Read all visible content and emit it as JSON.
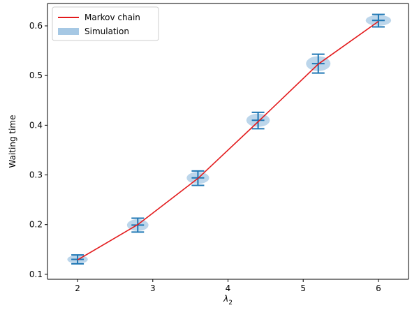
{
  "chart_data": {
    "type": "line",
    "title": "",
    "xlabel_base": "λ",
    "xlabel_sub": "2",
    "ylabel": "Waiting time",
    "xlim": [
      1.6,
      6.4
    ],
    "ylim": [
      0.09,
      0.645
    ],
    "xticks": [
      2,
      3,
      4,
      5,
      6
    ],
    "xtick_labels": [
      "2",
      "3",
      "4",
      "5",
      "6"
    ],
    "yticks": [
      0.1,
      0.2,
      0.3,
      0.4,
      0.5,
      0.6
    ],
    "ytick_labels": [
      "0.1",
      "0.2",
      "0.3",
      "0.4",
      "0.5",
      "0.6"
    ],
    "legend_position": "top-left",
    "grid": false,
    "series": [
      {
        "name": "Markov chain",
        "kind": "line",
        "color": "#e31a1c",
        "x": [
          2.0,
          2.8,
          3.6,
          4.4,
          5.2,
          6.0
        ],
        "y": [
          0.129,
          0.2,
          0.293,
          0.407,
          0.523,
          0.609
        ]
      },
      {
        "name": "Simulation",
        "kind": "violin-errorbar",
        "color": "#1f77b4",
        "fill_color": "#a6c8e4",
        "x": [
          2.0,
          2.8,
          3.6,
          4.4,
          5.2,
          6.0
        ],
        "mean": [
          0.13,
          0.199,
          0.294,
          0.41,
          0.524,
          0.611
        ],
        "min": [
          0.121,
          0.185,
          0.279,
          0.393,
          0.505,
          0.598
        ],
        "max": [
          0.139,
          0.213,
          0.308,
          0.426,
          0.543,
          0.623
        ]
      }
    ]
  }
}
